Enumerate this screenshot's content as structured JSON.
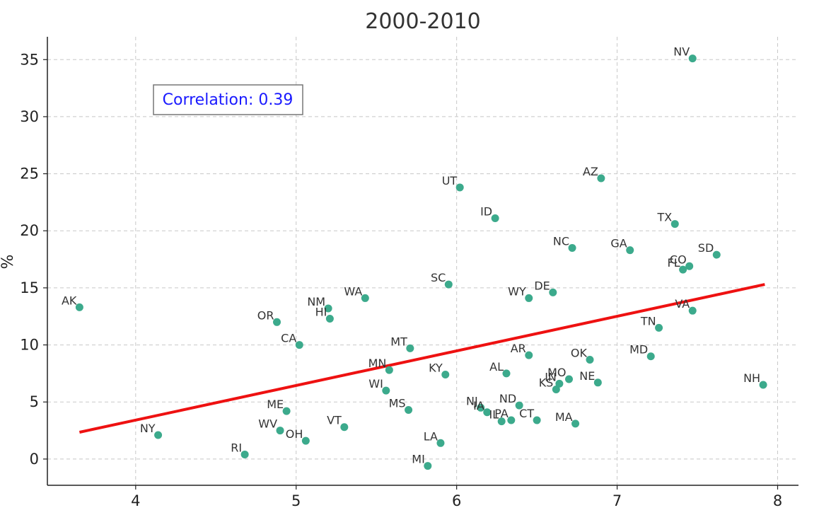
{
  "chart_data": {
    "type": "scatter",
    "title": "2000-2010",
    "xlabel": "",
    "ylabel": "%",
    "xlim": [
      3.45,
      8.13
    ],
    "ylim": [
      -2.3,
      37.0
    ],
    "xticks": [
      4,
      5,
      6,
      7,
      8
    ],
    "yticks": [
      0,
      5,
      10,
      15,
      20,
      25,
      30,
      35
    ],
    "grid": true,
    "annotation": "Correlation: 0.39",
    "annotation_color": "#1a1aff",
    "point_color": "#3caa8c",
    "trend_color": "#ee1111",
    "trendline": {
      "x": [
        3.65,
        7.92
      ],
      "y": [
        2.35,
        15.3
      ]
    },
    "points": [
      {
        "label": "AK",
        "x": 3.65,
        "y": 13.3
      },
      {
        "label": "NY",
        "x": 4.14,
        "y": 2.1
      },
      {
        "label": "RI",
        "x": 4.68,
        "y": 0.4
      },
      {
        "label": "OR",
        "x": 4.88,
        "y": 12.0
      },
      {
        "label": "WV",
        "x": 4.9,
        "y": 2.5
      },
      {
        "label": "ME",
        "x": 4.94,
        "y": 4.2
      },
      {
        "label": "CA",
        "x": 5.02,
        "y": 10.0
      },
      {
        "label": "OH",
        "x": 5.06,
        "y": 1.6
      },
      {
        "label": "NM",
        "x": 5.2,
        "y": 13.2
      },
      {
        "label": "HI",
        "x": 5.21,
        "y": 12.3
      },
      {
        "label": "VT",
        "x": 5.3,
        "y": 2.8
      },
      {
        "label": "WA",
        "x": 5.43,
        "y": 14.1
      },
      {
        "label": "WI",
        "x": 5.56,
        "y": 6.0
      },
      {
        "label": "MN",
        "x": 5.58,
        "y": 7.8
      },
      {
        "label": "MS",
        "x": 5.7,
        "y": 4.3
      },
      {
        "label": "MT",
        "x": 5.71,
        "y": 9.7
      },
      {
        "label": "MI",
        "x": 5.82,
        "y": -0.6
      },
      {
        "label": "LA",
        "x": 5.9,
        "y": 1.4
      },
      {
        "label": "KY",
        "x": 5.93,
        "y": 7.4
      },
      {
        "label": "SC",
        "x": 5.95,
        "y": 15.3
      },
      {
        "label": "UT",
        "x": 6.02,
        "y": 23.8
      },
      {
        "label": "NJ",
        "x": 6.15,
        "y": 4.5
      },
      {
        "label": "IA",
        "x": 6.19,
        "y": 4.1
      },
      {
        "label": "ID",
        "x": 6.24,
        "y": 21.1
      },
      {
        "label": "IL",
        "x": 6.28,
        "y": 3.3
      },
      {
        "label": "AL",
        "x": 6.31,
        "y": 7.5
      },
      {
        "label": "PA",
        "x": 6.34,
        "y": 3.4
      },
      {
        "label": "ND",
        "x": 6.39,
        "y": 4.7
      },
      {
        "label": "AR",
        "x": 6.45,
        "y": 9.1
      },
      {
        "label": "WY",
        "x": 6.45,
        "y": 14.1
      },
      {
        "label": "CT",
        "x": 6.5,
        "y": 3.4
      },
      {
        "label": "DE",
        "x": 6.6,
        "y": 14.6
      },
      {
        "label": "KS",
        "x": 6.62,
        "y": 6.1
      },
      {
        "label": "IN",
        "x": 6.64,
        "y": 6.6
      },
      {
        "label": "MO",
        "x": 6.7,
        "y": 7.0
      },
      {
        "label": "NC",
        "x": 6.72,
        "y": 18.5
      },
      {
        "label": "MA",
        "x": 6.74,
        "y": 3.1
      },
      {
        "label": "OK",
        "x": 6.83,
        "y": 8.7
      },
      {
        "label": "NE",
        "x": 6.88,
        "y": 6.7
      },
      {
        "label": "AZ",
        "x": 6.9,
        "y": 24.6
      },
      {
        "label": "GA",
        "x": 7.08,
        "y": 18.3
      },
      {
        "label": "MD",
        "x": 7.21,
        "y": 9.0
      },
      {
        "label": "TN",
        "x": 7.26,
        "y": 11.5
      },
      {
        "label": "TX",
        "x": 7.36,
        "y": 20.6
      },
      {
        "label": "FL",
        "x": 7.41,
        "y": 16.6
      },
      {
        "label": "CO",
        "x": 7.45,
        "y": 16.9
      },
      {
        "label": "NV",
        "x": 7.47,
        "y": 35.1
      },
      {
        "label": "VA",
        "x": 7.47,
        "y": 13.0
      },
      {
        "label": "SD",
        "x": 7.62,
        "y": 17.9
      },
      {
        "label": "NH",
        "x": 7.91,
        "y": 6.5
      }
    ]
  }
}
